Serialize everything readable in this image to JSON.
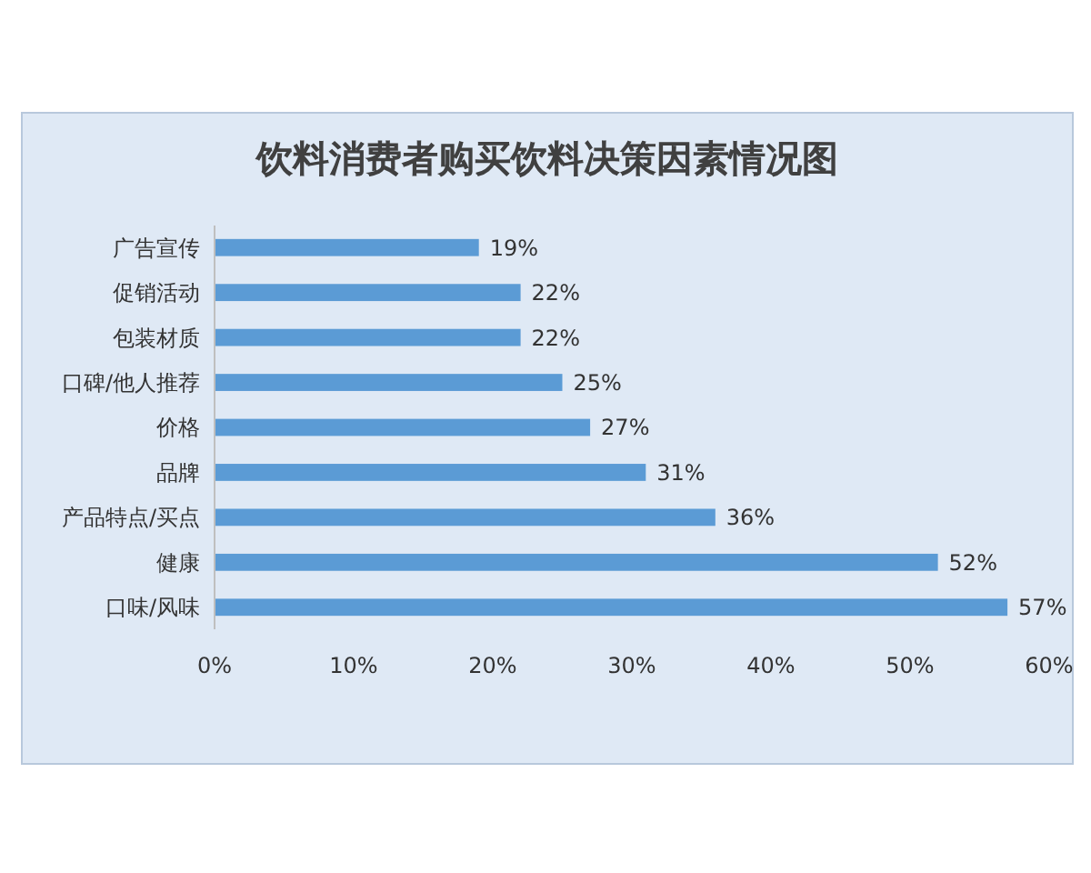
{
  "chart_data": {
    "type": "bar",
    "orientation": "horizontal",
    "title": "饮料消费者购买饮料决策因素情况图",
    "categories": [
      "广告宣传",
      "促销活动",
      "包装材质",
      "口碑/他人推荐",
      "价格",
      "品牌",
      "产品特点/买点",
      "健康",
      "口味/风味"
    ],
    "values": [
      19,
      22,
      22,
      25,
      27,
      31,
      36,
      52,
      57
    ],
    "value_labels": [
      "19%",
      "22%",
      "22%",
      "25%",
      "27%",
      "31%",
      "36%",
      "52%",
      "57%"
    ],
    "color": "#5b9bd5",
    "xlim": [
      0,
      60
    ],
    "xticks": [
      {
        "value": 0,
        "label": "0%"
      },
      {
        "value": 10,
        "label": "10%"
      },
      {
        "value": 20,
        "label": "20%"
      },
      {
        "value": 30,
        "label": "30%"
      },
      {
        "value": 40,
        "label": "40%"
      },
      {
        "value": 50,
        "label": "50%"
      },
      {
        "value": 60,
        "label": "60%"
      }
    ],
    "grid": false
  }
}
